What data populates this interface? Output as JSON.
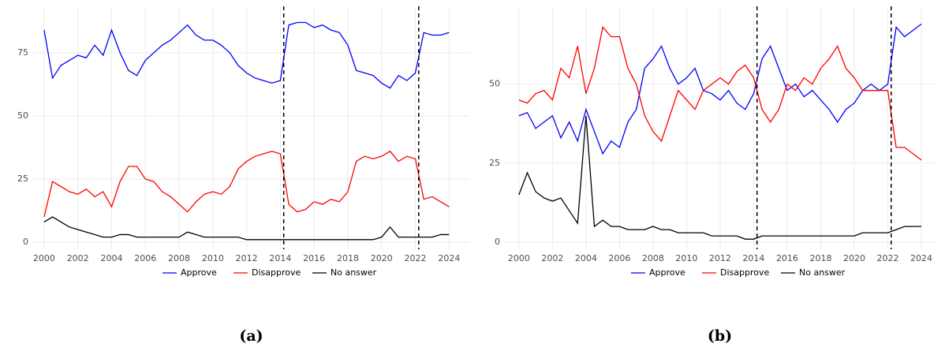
{
  "chart_data": [
    {
      "type": "line",
      "caption": "(a)",
      "x": [
        2000,
        2000.5,
        2001,
        2001.5,
        2002,
        2002.5,
        2003,
        2003.5,
        2004,
        2004.5,
        2005,
        2005.5,
        2006,
        2006.5,
        2007,
        2007.5,
        2008,
        2008.5,
        2009,
        2009.5,
        2010,
        2010.5,
        2011,
        2011.5,
        2012,
        2012.5,
        2013,
        2013.5,
        2014,
        2014.5,
        2015,
        2015.5,
        2016,
        2016.5,
        2017,
        2017.5,
        2018,
        2018.5,
        2019,
        2019.5,
        2020,
        2020.5,
        2021,
        2021.5,
        2022,
        2022.5,
        2023,
        2023.5,
        2024
      ],
      "series": [
        {
          "name": "Approve",
          "color": "#0000ff",
          "values": [
            84,
            65,
            70,
            72,
            74,
            73,
            78,
            74,
            84,
            75,
            68,
            66,
            72,
            75,
            78,
            80,
            83,
            86,
            82,
            80,
            80,
            78,
            75,
            70,
            67,
            65,
            64,
            63,
            64,
            86,
            87,
            87,
            85,
            86,
            84,
            83,
            78,
            68,
            67,
            66,
            63,
            61,
            66,
            64,
            67,
            83,
            82,
            82,
            83
          ]
        },
        {
          "name": "Disapprove",
          "color": "#ff0000",
          "values": [
            10,
            24,
            22,
            20,
            19,
            21,
            18,
            20,
            14,
            24,
            30,
            30,
            25,
            24,
            20,
            18,
            15,
            12,
            16,
            19,
            20,
            19,
            22,
            29,
            32,
            34,
            35,
            36,
            35,
            15,
            12,
            13,
            16,
            15,
            17,
            16,
            20,
            32,
            34,
            33,
            34,
            36,
            32,
            34,
            33,
            17,
            18,
            16,
            14
          ]
        },
        {
          "name": "No answer",
          "color": "#000000",
          "values": [
            8,
            10,
            8,
            6,
            5,
            4,
            3,
            2,
            2,
            3,
            3,
            2,
            2,
            2,
            2,
            2,
            2,
            4,
            3,
            2,
            2,
            2,
            2,
            2,
            1,
            1,
            1,
            1,
            1,
            1,
            1,
            1,
            1,
            1,
            1,
            1,
            1,
            1,
            1,
            1,
            2,
            6,
            2,
            2,
            2,
            2,
            2,
            3,
            3
          ]
        }
      ],
      "xlim": [
        1999.35,
        2025.2
      ],
      "xticks": [
        2000,
        2002,
        2004,
        2006,
        2008,
        2010,
        2012,
        2014,
        2016,
        2018,
        2020,
        2022,
        2024
      ],
      "ylim": [
        -2.8,
        93.4
      ],
      "yticks": [
        0,
        25,
        50,
        75
      ],
      "vlines": [
        2014.2,
        2022.2
      ],
      "grid": true,
      "legend": "bottom"
    },
    {
      "type": "line",
      "caption": "(b)",
      "x": [
        2000,
        2000.5,
        2001,
        2001.5,
        2002,
        2002.5,
        2003,
        2003.5,
        2004,
        2004.5,
        2005,
        2005.5,
        2006,
        2006.5,
        2007,
        2007.5,
        2008,
        2008.5,
        2009,
        2009.5,
        2010,
        2010.5,
        2011,
        2011.5,
        2012,
        2012.5,
        2013,
        2013.5,
        2014,
        2014.5,
        2015,
        2015.5,
        2016,
        2016.5,
        2017,
        2017.5,
        2018,
        2018.5,
        2019,
        2019.5,
        2020,
        2020.5,
        2021,
        2021.5,
        2022,
        2022.5,
        2023,
        2023.5,
        2024
      ],
      "series": [
        {
          "name": "Approve",
          "color": "#0000ff",
          "values": [
            40,
            41,
            36,
            38,
            40,
            33,
            38,
            32,
            42,
            35,
            28,
            32,
            30,
            38,
            42,
            55,
            58,
            62,
            55,
            50,
            52,
            55,
            48,
            47,
            45,
            48,
            44,
            42,
            47,
            58,
            62,
            55,
            48,
            50,
            46,
            48,
            45,
            42,
            38,
            42,
            44,
            48,
            50,
            48,
            50,
            68,
            65,
            67,
            69
          ]
        },
        {
          "name": "Disapprove",
          "color": "#ff0000",
          "values": [
            45,
            44,
            47,
            48,
            45,
            55,
            52,
            62,
            47,
            55,
            68,
            65,
            65,
            55,
            50,
            40,
            35,
            32,
            40,
            48,
            45,
            42,
            48,
            50,
            52,
            50,
            54,
            56,
            52,
            42,
            38,
            42,
            50,
            48,
            52,
            50,
            55,
            58,
            62,
            55,
            52,
            48,
            48,
            48,
            48,
            30,
            30,
            28,
            26
          ]
        },
        {
          "name": "No answer",
          "color": "#000000",
          "values": [
            15,
            22,
            16,
            14,
            13,
            14,
            10,
            6,
            40,
            5,
            7,
            5,
            5,
            4,
            4,
            4,
            5,
            4,
            4,
            3,
            3,
            3,
            3,
            2,
            2,
            2,
            2,
            1,
            1,
            2,
            2,
            2,
            2,
            2,
            2,
            2,
            2,
            2,
            2,
            2,
            2,
            3,
            3,
            3,
            3,
            4,
            5,
            5,
            5
          ]
        }
      ],
      "xlim": [
        1999.16,
        2024.8
      ],
      "xticks": [
        2000,
        2002,
        2004,
        2006,
        2008,
        2010,
        2012,
        2014,
        2016,
        2018,
        2020,
        2022,
        2024
      ],
      "ylim": [
        -2.2,
        74.6
      ],
      "yticks": [
        0,
        25,
        50
      ],
      "vlines": [
        2014.2,
        2022.2
      ],
      "grid": true,
      "legend": "bottom"
    }
  ]
}
